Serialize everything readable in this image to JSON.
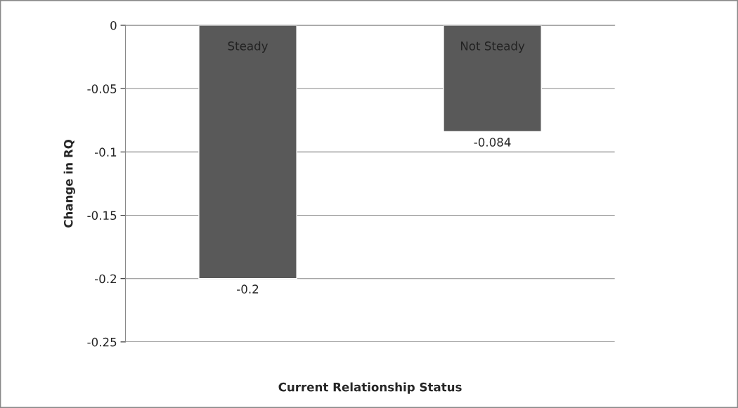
{
  "chart_data": {
    "type": "bar",
    "categories": [
      "Steady",
      "Not Steady"
    ],
    "values": [
      -0.2,
      -0.084
    ],
    "color": "#595959",
    "xlabel": "Current Relationship Status",
    "ylabel": "Change in RQ",
    "ylim": [
      -0.25,
      0
    ],
    "yticks": [
      {
        "value": 0,
        "label": "0"
      },
      {
        "value": -0.05,
        "label": "-0.05"
      },
      {
        "value": -0.1,
        "label": "-0.1"
      },
      {
        "value": -0.15,
        "label": "-0.15"
      },
      {
        "value": -0.2,
        "label": "-0.2"
      },
      {
        "value": -0.25,
        "label": "-0.25"
      }
    ],
    "value_labels": [
      "-0.2",
      "-0.084"
    ],
    "grid": "y",
    "legend": false
  }
}
